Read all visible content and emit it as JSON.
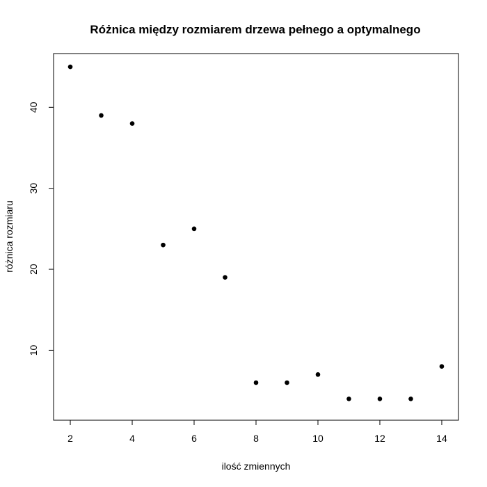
{
  "chart_data": {
    "type": "scatter",
    "title": "Różnica między rozmiarem drzewa pełnego a optymalnego",
    "xlabel": "ilość zmiennych",
    "ylabel": "różnica rozmiaru",
    "xlim": [
      1.46,
      14.54
    ],
    "ylim": [
      1.36,
      46.64
    ],
    "x_ticks": [
      2,
      4,
      6,
      8,
      10,
      12,
      14
    ],
    "y_ticks": [
      10,
      20,
      30,
      40
    ],
    "points": [
      {
        "x": 2,
        "y": 45
      },
      {
        "x": 3,
        "y": 39
      },
      {
        "x": 4,
        "y": 38
      },
      {
        "x": 5,
        "y": 23
      },
      {
        "x": 6,
        "y": 25
      },
      {
        "x": 7,
        "y": 19
      },
      {
        "x": 8,
        "y": 6
      },
      {
        "x": 9,
        "y": 6
      },
      {
        "x": 10,
        "y": 7
      },
      {
        "x": 11,
        "y": 4
      },
      {
        "x": 12,
        "y": 4
      },
      {
        "x": 13,
        "y": 4
      },
      {
        "x": 14,
        "y": 8
      }
    ],
    "marker_color": "#000000",
    "grid": false
  }
}
